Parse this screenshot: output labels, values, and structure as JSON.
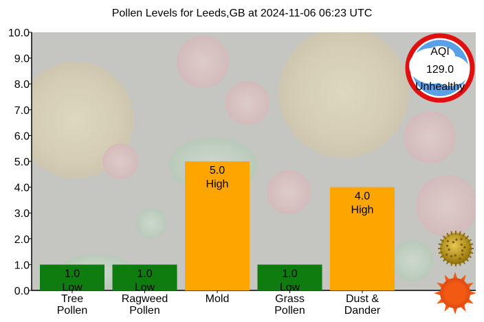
{
  "chart_data": {
    "type": "bar",
    "title": "Pollen Levels for Leeds,GB at 2024-11-06 06:23 UTC",
    "categories": [
      [
        "Tree",
        "Pollen"
      ],
      [
        "Ragweed",
        "Pollen"
      ],
      [
        "Mold"
      ],
      [
        "Grass",
        "Pollen"
      ],
      [
        "Dust &",
        "Dander"
      ]
    ],
    "values": [
      1.0,
      1.0,
      5.0,
      1.0,
      4.0
    ],
    "value_labels": [
      "1.0",
      "1.0",
      "5.0",
      "1.0",
      "4.0"
    ],
    "levels": [
      "Low",
      "Low",
      "High",
      "Low",
      "High"
    ],
    "level_colors": {
      "Low": "#0e7c0e",
      "High": "#ffa500"
    },
    "ylim": [
      0,
      10
    ],
    "yticks": [
      "0.0",
      "1.0",
      "2.0",
      "3.0",
      "4.0",
      "5.0",
      "6.0",
      "7.0",
      "8.0",
      "9.0",
      "10.0"
    ],
    "xlabel": "",
    "ylabel": "",
    "grid": false,
    "background_color": "#dcdcdc"
  },
  "aqi_badge": {
    "label": "AQI",
    "value": "129.0",
    "category": "Unhealthy",
    "ring_color": "#e01010",
    "fill_color": "#5aa0e6"
  },
  "decorations": {
    "pollen_icon": "pollen-grain-icon",
    "sun_icon": "sun-icon",
    "background": "pollen-grains-background"
  }
}
